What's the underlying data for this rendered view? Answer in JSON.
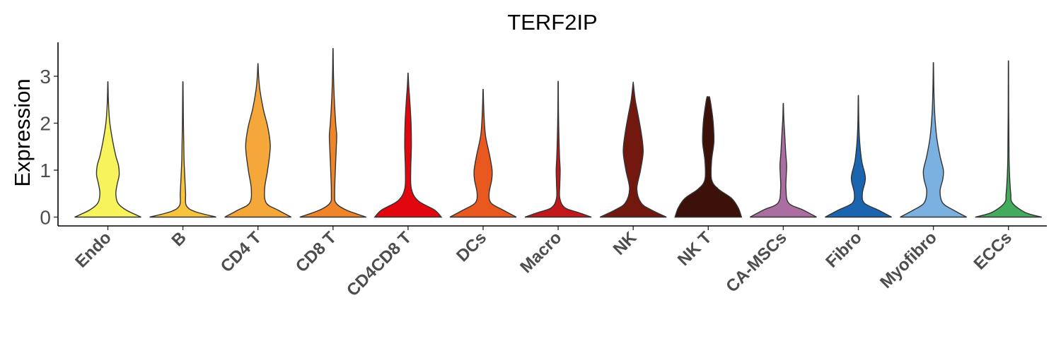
{
  "chart_data": {
    "type": "violin",
    "title": "TERF2IP",
    "ylabel": "Expression",
    "xlabel": "",
    "ylim": [
      -0.2,
      3.75
    ],
    "yticks": [
      0,
      1,
      2,
      3
    ],
    "legend": "none",
    "grid": false,
    "categories": [
      "Endo",
      "B",
      "CD4 T",
      "CD8 T",
      "CD4CD8 T",
      "DCs",
      "Macro",
      "NK",
      "NK T",
      "CA-MSCs",
      "Fibro",
      "Myofibro",
      "ECCs"
    ],
    "colors": [
      "#F7F35C",
      "#F8C43E",
      "#F5A73A",
      "#F08428",
      "#E2070F",
      "#E9581E",
      "#C3181A",
      "#72180F",
      "#3B1109",
      "#AA6FA0",
      "#1B64B0",
      "#7AB1E0",
      "#43AB5C"
    ],
    "series": [
      {
        "category": "Endo",
        "max": 2.85,
        "density": [
          [
            0,
            1.0
          ],
          [
            0.15,
            0.55
          ],
          [
            0.3,
            0.3
          ],
          [
            0.5,
            0.24
          ],
          [
            0.7,
            0.28
          ],
          [
            0.9,
            0.34
          ],
          [
            1.1,
            0.32
          ],
          [
            1.3,
            0.24
          ],
          [
            1.6,
            0.15
          ],
          [
            2.0,
            0.06
          ],
          [
            2.4,
            0.02
          ],
          [
            2.85,
            0.004
          ]
        ]
      },
      {
        "category": "B",
        "max": 2.85,
        "density": [
          [
            0,
            1.0
          ],
          [
            0.12,
            0.35
          ],
          [
            0.25,
            0.1
          ],
          [
            0.5,
            0.08
          ],
          [
            0.8,
            0.06
          ],
          [
            1.2,
            0.035
          ],
          [
            1.6,
            0.025
          ],
          [
            2.0,
            0.015
          ],
          [
            2.4,
            0.01
          ],
          [
            2.85,
            0.004
          ]
        ]
      },
      {
        "category": "CD4 T",
        "max": 3.25,
        "density": [
          [
            0,
            1.0
          ],
          [
            0.15,
            0.6
          ],
          [
            0.3,
            0.25
          ],
          [
            0.6,
            0.2
          ],
          [
            1.0,
            0.29
          ],
          [
            1.5,
            0.37
          ],
          [
            1.9,
            0.3
          ],
          [
            2.3,
            0.16
          ],
          [
            2.7,
            0.06
          ],
          [
            3.0,
            0.02
          ],
          [
            3.25,
            0.004
          ]
        ]
      },
      {
        "category": "CD8 T",
        "max": 3.55,
        "density": [
          [
            0,
            1.0
          ],
          [
            0.15,
            0.4
          ],
          [
            0.3,
            0.09
          ],
          [
            0.5,
            0.05
          ],
          [
            1.0,
            0.07
          ],
          [
            1.5,
            0.1
          ],
          [
            1.75,
            0.11
          ],
          [
            2.0,
            0.08
          ],
          [
            2.5,
            0.04
          ],
          [
            3.0,
            0.015
          ],
          [
            3.55,
            0.004
          ]
        ]
      },
      {
        "category": "CD4CD8 T",
        "max": 3.05,
        "density": [
          [
            0,
            1.0
          ],
          [
            0.15,
            0.8
          ],
          [
            0.35,
            0.3
          ],
          [
            0.6,
            0.1
          ],
          [
            1.0,
            0.08
          ],
          [
            1.5,
            0.1
          ],
          [
            2.0,
            0.09
          ],
          [
            2.5,
            0.05
          ],
          [
            2.8,
            0.02
          ],
          [
            3.05,
            0.004
          ]
        ]
      },
      {
        "category": "DCs",
        "max": 2.7,
        "density": [
          [
            0,
            1.0
          ],
          [
            0.15,
            0.6
          ],
          [
            0.3,
            0.24
          ],
          [
            0.5,
            0.18
          ],
          [
            0.8,
            0.26
          ],
          [
            1.0,
            0.27
          ],
          [
            1.3,
            0.2
          ],
          [
            1.7,
            0.08
          ],
          [
            2.0,
            0.04
          ],
          [
            2.4,
            0.015
          ],
          [
            2.7,
            0.004
          ]
        ]
      },
      {
        "category": "Macro",
        "max": 2.85,
        "density": [
          [
            0,
            1.0
          ],
          [
            0.1,
            0.6
          ],
          [
            0.2,
            0.2
          ],
          [
            0.4,
            0.05
          ],
          [
            0.7,
            0.05
          ],
          [
            1.0,
            0.06
          ],
          [
            1.3,
            0.04
          ],
          [
            1.8,
            0.02
          ],
          [
            2.3,
            0.008
          ],
          [
            2.85,
            0.004
          ]
        ]
      },
      {
        "category": "NK",
        "max": 2.85,
        "density": [
          [
            0,
            1.0
          ],
          [
            0.15,
            0.55
          ],
          [
            0.3,
            0.24
          ],
          [
            0.6,
            0.11
          ],
          [
            1.0,
            0.22
          ],
          [
            1.4,
            0.3
          ],
          [
            1.8,
            0.24
          ],
          [
            2.2,
            0.14
          ],
          [
            2.5,
            0.06
          ],
          [
            2.85,
            0.004
          ]
        ]
      },
      {
        "category": "NK T",
        "max": 2.55,
        "density": [
          [
            0,
            1.0
          ],
          [
            0.2,
            0.9
          ],
          [
            0.4,
            0.7
          ],
          [
            0.6,
            0.3
          ],
          [
            0.8,
            0.1
          ],
          [
            1.2,
            0.1
          ],
          [
            1.6,
            0.17
          ],
          [
            2.0,
            0.15
          ],
          [
            2.3,
            0.1
          ],
          [
            2.55,
            0.04
          ]
        ]
      },
      {
        "category": "CA-MSCs",
        "max": 2.4,
        "density": [
          [
            0,
            1.0
          ],
          [
            0.15,
            0.6
          ],
          [
            0.3,
            0.16
          ],
          [
            0.6,
            0.08
          ],
          [
            0.9,
            0.09
          ],
          [
            1.1,
            0.1
          ],
          [
            1.4,
            0.07
          ],
          [
            1.8,
            0.04
          ],
          [
            2.1,
            0.015
          ],
          [
            2.4,
            0.004
          ]
        ]
      },
      {
        "category": "Fibro",
        "max": 2.55,
        "density": [
          [
            0,
            1.0
          ],
          [
            0.15,
            0.6
          ],
          [
            0.3,
            0.18
          ],
          [
            0.5,
            0.12
          ],
          [
            0.75,
            0.2
          ],
          [
            0.9,
            0.2
          ],
          [
            1.2,
            0.1
          ],
          [
            1.6,
            0.04
          ],
          [
            2.0,
            0.015
          ],
          [
            2.55,
            0.004
          ]
        ]
      },
      {
        "category": "Myofibro",
        "max": 3.25,
        "density": [
          [
            0,
            1.0
          ],
          [
            0.15,
            0.6
          ],
          [
            0.3,
            0.28
          ],
          [
            0.55,
            0.2
          ],
          [
            0.8,
            0.28
          ],
          [
            1.0,
            0.3
          ],
          [
            1.3,
            0.2
          ],
          [
            1.7,
            0.1
          ],
          [
            2.2,
            0.04
          ],
          [
            2.7,
            0.015
          ],
          [
            3.25,
            0.004
          ]
        ]
      },
      {
        "category": "ECCs",
        "max": 3.25,
        "density": [
          [
            0,
            1.0
          ],
          [
            0.1,
            0.5
          ],
          [
            0.3,
            0.12
          ],
          [
            0.5,
            0.07
          ],
          [
            0.8,
            0.04
          ],
          [
            1.2,
            0.02
          ],
          [
            1.6,
            0.015
          ],
          [
            2.2,
            0.008
          ],
          [
            3.25,
            0.004
          ]
        ]
      }
    ]
  }
}
